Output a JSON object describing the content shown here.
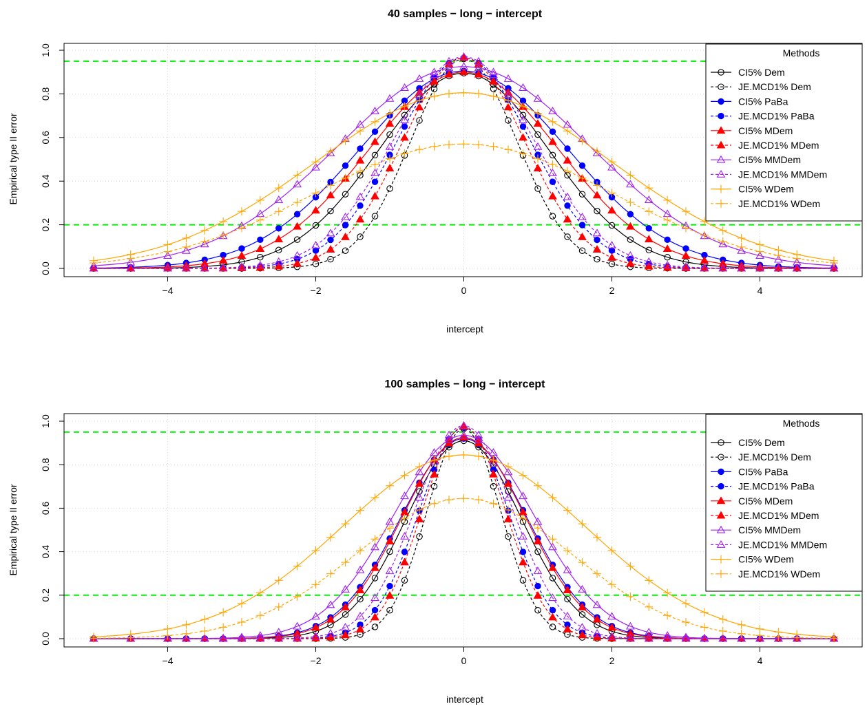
{
  "chart_data": [
    {
      "type": "line",
      "title": "40 samples − long − intercept",
      "xlabel": "intercept",
      "ylabel": "Empirical type II error",
      "xlim": [
        -5,
        5
      ],
      "ylim": [
        0,
        1
      ],
      "x_ticks": [
        -4,
        -2,
        0,
        2,
        4
      ],
      "y_ticks": [
        0.0,
        0.2,
        0.4,
        0.6,
        0.8,
        1.0
      ],
      "x_tick_labels": [
        "−4",
        "−2",
        "0",
        "2",
        "4"
      ],
      "y_tick_labels": [
        "0.0",
        "0.2",
        "0.4",
        "0.6",
        "0.8",
        "1.0"
      ],
      "grid": true,
      "reference_lines": [
        0.95,
        0.2
      ],
      "reference_line_color": "#00ee00",
      "legend": {
        "title": "Methods",
        "placement": "right"
      },
      "series": [
        {
          "name": "CI5% Dem",
          "color": "#000000",
          "marker": "open-circle",
          "linestyle": "solid",
          "peak": 0.895,
          "sd": 1.15
        },
        {
          "name": "JE.MCD1% Dem",
          "color": "#000000",
          "marker": "open-circle",
          "linestyle": "dashed",
          "peak": 0.96,
          "sd": 0.72
        },
        {
          "name": "CI5% PaBa",
          "color": "#0000ff",
          "marker": "filled-circle",
          "linestyle": "solid",
          "peak": 0.905,
          "sd": 1.4
        },
        {
          "name": "JE.MCD1% PaBa",
          "color": "#0000ff",
          "marker": "filled-circle",
          "linestyle": "dashed",
          "peak": 0.965,
          "sd": 0.9
        },
        {
          "name": "CI5% MDem",
          "color": "#ff0000",
          "marker": "filled-triangle",
          "linestyle": "solid",
          "peak": 0.9,
          "sd": 1.28
        },
        {
          "name": "JE.MCD1% MDem",
          "color": "#ff0000",
          "marker": "filled-triangle",
          "linestyle": "dashed",
          "peak": 0.965,
          "sd": 0.82
        },
        {
          "name": "CI5% MMDem",
          "color": "#a020f0",
          "marker": "open-triangle",
          "linestyle": "solid",
          "peak": 0.925,
          "sd": 1.7
        },
        {
          "name": "JE.MCD1% MMDem",
          "color": "#a020f0",
          "marker": "open-triangle",
          "linestyle": "dashed",
          "peak": 0.97,
          "sd": 0.95
        },
        {
          "name": "CI5% WDem",
          "color": "#ffa500",
          "marker": "plus",
          "linestyle": "solid",
          "peak": 0.805,
          "sd": 2.0
        },
        {
          "name": "JE.MCD1% WDem",
          "color": "#ffa500",
          "marker": "plus",
          "linestyle": "dashed",
          "peak": 0.57,
          "sd": 2.0
        }
      ]
    },
    {
      "type": "line",
      "title": "100 samples − long − intercept",
      "xlabel": "intercept",
      "ylabel": "Empirical type II error",
      "xlim": [
        -5,
        5
      ],
      "ylim": [
        0,
        1
      ],
      "x_ticks": [
        -4,
        -2,
        0,
        2,
        4
      ],
      "y_ticks": [
        0.0,
        0.2,
        0.4,
        0.6,
        0.8,
        1.0
      ],
      "x_tick_labels": [
        "−4",
        "−2",
        "0",
        "2",
        "4"
      ],
      "y_tick_labels": [
        "0.0",
        "0.2",
        "0.4",
        "0.6",
        "0.8",
        "1.0"
      ],
      "grid": true,
      "reference_lines": [
        0.95,
        0.2
      ],
      "reference_line_color": "#00ee00",
      "legend": {
        "title": "Methods",
        "placement": "right"
      },
      "series": [
        {
          "name": "CI5% Dem",
          "color": "#000000",
          "marker": "open-circle",
          "linestyle": "solid",
          "peak": 0.91,
          "sd": 0.78
        },
        {
          "name": "JE.MCD1% Dem",
          "color": "#000000",
          "marker": "open-circle",
          "linestyle": "dashed",
          "peak": 0.965,
          "sd": 0.5
        },
        {
          "name": "CI5% PaBa",
          "color": "#0000ff",
          "marker": "filled-circle",
          "linestyle": "solid",
          "peak": 0.92,
          "sd": 0.85
        },
        {
          "name": "JE.MCD1% PaBa",
          "color": "#0000ff",
          "marker": "filled-circle",
          "linestyle": "dashed",
          "peak": 0.97,
          "sd": 0.6
        },
        {
          "name": "CI5% MDem",
          "color": "#ff0000",
          "marker": "filled-triangle",
          "linestyle": "solid",
          "peak": 0.925,
          "sd": 0.83
        },
        {
          "name": "JE.MCD1% MDem",
          "color": "#ff0000",
          "marker": "filled-triangle",
          "linestyle": "dashed",
          "peak": 0.975,
          "sd": 0.56
        },
        {
          "name": "CI5% MMDem",
          "color": "#a020f0",
          "marker": "open-triangle",
          "linestyle": "solid",
          "peak": 0.935,
          "sd": 0.95
        },
        {
          "name": "JE.MCD1% MMDem",
          "color": "#a020f0",
          "marker": "open-triangle",
          "linestyle": "dashed",
          "peak": 0.98,
          "sd": 0.66
        },
        {
          "name": "CI5% WDem",
          "color": "#ffa500",
          "marker": "plus",
          "linestyle": "solid",
          "peak": 0.845,
          "sd": 1.65
        },
        {
          "name": "JE.MCD1% WDem",
          "color": "#ffa500",
          "marker": "plus",
          "linestyle": "dashed",
          "peak": 0.645,
          "sd": 1.45
        }
      ]
    }
  ]
}
